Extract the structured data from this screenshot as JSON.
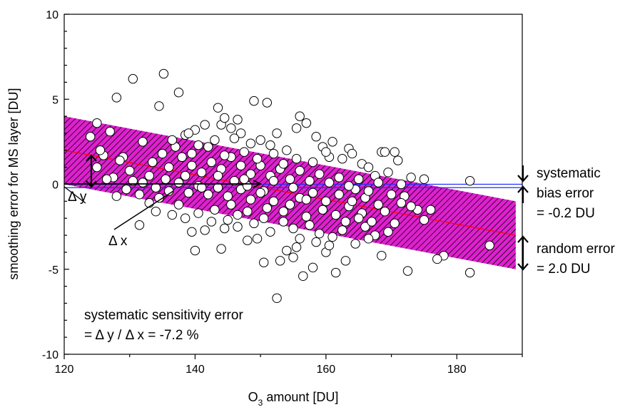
{
  "chart_data": {
    "type": "scatter",
    "title": "",
    "xlabel": "O3 amount [DU]",
    "xlabel_parts": {
      "base": "O",
      "sub": "3",
      "rest": " amount [DU]"
    },
    "ylabel": "smoothing error for MS layer [DU]",
    "xlim": [
      120,
      190
    ],
    "ylim": [
      -10,
      10
    ],
    "x_ticks": [
      "120",
      "140",
      "160",
      "180"
    ],
    "x_tick_values": [
      120,
      140,
      160,
      180
    ],
    "y_ticks": [
      "10",
      "5",
      "0",
      "-5",
      "-10"
    ],
    "y_tick_values": [
      10,
      5,
      0,
      -5,
      -10
    ],
    "grid": false,
    "colors": {
      "band_fill": "#e020d0",
      "band_hatch": "#000000",
      "regression_line": "#ff0000",
      "bias_line": "#2030ff",
      "points_edge": "#000000",
      "points_fill": "#ffffff"
    },
    "regression": {
      "x": [
        120,
        189
      ],
      "y": [
        2.0,
        -3.0
      ]
    },
    "band": {
      "upper_y": [
        4.0,
        -1.0
      ],
      "lower_y": [
        0.0,
        -5.0
      ]
    },
    "bias_line_y": [
      -0.2,
      0.0
    ],
    "zero_line_y": 0.0,
    "annotations": {
      "delta_y": "Δ y",
      "delta_x": "Δ x",
      "systematic_bias": [
        "systematic",
        "bias error",
        "= -0.2 DU"
      ],
      "random_error": [
        "random error",
        "= 2.0 DU"
      ],
      "sensitivity": [
        "systematic sensitivity error",
        "= Δ y / Δ x = -7.2 %"
      ]
    },
    "points": [
      [
        130.5,
        6.2
      ],
      [
        135.2,
        6.5
      ],
      [
        128,
        5.1
      ],
      [
        137.5,
        5.4
      ],
      [
        134.5,
        4.6
      ],
      [
        149,
        4.9
      ],
      [
        151,
        4.8
      ],
      [
        143.5,
        4.5
      ],
      [
        124,
        2.8
      ],
      [
        125,
        3.6
      ],
      [
        127,
        3.1
      ],
      [
        132,
        2.5
      ],
      [
        129,
        1.6
      ],
      [
        126,
        1.7
      ],
      [
        128.5,
        1.4
      ],
      [
        130,
        0.8
      ],
      [
        125,
        1.0
      ],
      [
        127.5,
        0.4
      ],
      [
        130.5,
        0.2
      ],
      [
        133,
        0.5
      ],
      [
        136,
        1.0
      ],
      [
        138.5,
        2.9
      ],
      [
        140,
        3.2
      ],
      [
        141.5,
        3.5
      ],
      [
        139,
        3.0
      ],
      [
        142,
        2.2
      ],
      [
        144,
        3.5
      ],
      [
        145.5,
        3.3
      ],
      [
        146.5,
        3.8
      ],
      [
        144.5,
        3.9
      ],
      [
        147,
        3.0
      ],
      [
        148.5,
        2.4
      ],
      [
        150,
        2.6
      ],
      [
        152.5,
        3.0
      ],
      [
        151.5,
        2.3
      ],
      [
        154,
        2.0
      ],
      [
        155.5,
        3.3
      ],
      [
        156,
        4.0
      ],
      [
        157,
        3.6
      ],
      [
        158.5,
        2.8
      ],
      [
        159.5,
        2.2
      ],
      [
        161,
        2.5
      ],
      [
        160.5,
        1.6
      ],
      [
        162.5,
        1.5
      ],
      [
        163.5,
        2.1
      ],
      [
        164,
        1.8
      ],
      [
        165.5,
        1.2
      ],
      [
        166.5,
        1.0
      ],
      [
        167.5,
        0.5
      ],
      [
        168.5,
        1.9
      ],
      [
        169,
        1.9
      ],
      [
        170.5,
        1.9
      ],
      [
        171,
        1.4
      ],
      [
        169.5,
        0.7
      ],
      [
        171.5,
        0.0
      ],
      [
        173,
        0.4
      ],
      [
        175,
        0.3
      ],
      [
        172,
        -0.7
      ],
      [
        174,
        -1.5
      ],
      [
        175,
        -2.1
      ],
      [
        176,
        -1.5
      ],
      [
        178,
        -4.2
      ],
      [
        177,
        -4.4
      ],
      [
        182,
        0.2
      ],
      [
        185,
        -3.6
      ],
      [
        182,
        -5.2
      ],
      [
        172.5,
        -5.1
      ],
      [
        168.5,
        -4.2
      ],
      [
        167.5,
        -3.0
      ],
      [
        166,
        -2.5
      ],
      [
        164.5,
        -3.5
      ],
      [
        163,
        -4.5
      ],
      [
        161.5,
        -5.2
      ],
      [
        160,
        -4.0
      ],
      [
        158,
        -4.9
      ],
      [
        156.5,
        -5.4
      ],
      [
        155.5,
        -3.7
      ],
      [
        154,
        -3.9
      ],
      [
        153,
        -4.5
      ],
      [
        152.5,
        -6.7
      ],
      [
        150.5,
        -4.6
      ],
      [
        149.5,
        -3.2
      ],
      [
        146.5,
        -2.5
      ],
      [
        144,
        -3.8
      ],
      [
        141.5,
        -2.7
      ],
      [
        139.5,
        -2.8
      ],
      [
        140,
        -3.9
      ],
      [
        145,
        -2.1
      ],
      [
        131.5,
        -2.4
      ],
      [
        134,
        -1.6
      ],
      [
        137.5,
        -1.2
      ],
      [
        140.5,
        -1.7
      ],
      [
        143,
        -1.5
      ],
      [
        145.5,
        -1.2
      ],
      [
        148,
        -1.6
      ],
      [
        150.5,
        -2.0
      ],
      [
        153.5,
        -2.2
      ],
      [
        155,
        -2.6
      ],
      [
        157.5,
        -2.4
      ],
      [
        159,
        -2.9
      ],
      [
        161,
        -3.1
      ],
      [
        163,
        -2.2
      ],
      [
        165.5,
        -1.7
      ],
      [
        167,
        -2.2
      ],
      [
        169.5,
        -2.8
      ],
      [
        170.5,
        -2.3
      ],
      [
        168,
        -1.2
      ],
      [
        166,
        -0.8
      ],
      [
        164.5,
        -0.3
      ],
      [
        162,
        -0.6
      ],
      [
        160,
        -1.0
      ],
      [
        158,
        -0.5
      ],
      [
        156,
        -0.8
      ],
      [
        154.5,
        -1.2
      ],
      [
        152,
        -1.0
      ],
      [
        150.5,
        -0.4
      ],
      [
        148.5,
        -0.9
      ],
      [
        147,
        -0.3
      ],
      [
        145,
        -0.7
      ],
      [
        143.5,
        -0.2
      ],
      [
        142,
        -0.6
      ],
      [
        140.5,
        -0.1
      ],
      [
        139,
        -0.5
      ],
      [
        137.5,
        0.1
      ],
      [
        136,
        -0.4
      ],
      [
        134.5,
        -0.8
      ],
      [
        133,
        -1.1
      ],
      [
        131.5,
        -0.6
      ],
      [
        129.5,
        -0.3
      ],
      [
        128,
        -0.7
      ],
      [
        126.5,
        0.3
      ],
      [
        125.5,
        2.0
      ],
      [
        133.5,
        1.3
      ],
      [
        135,
        1.8
      ],
      [
        137,
        2.2
      ],
      [
        138,
        1.6
      ],
      [
        139.5,
        1.1
      ],
      [
        141,
        0.7
      ],
      [
        142.5,
        1.3
      ],
      [
        144,
        0.9
      ],
      [
        145.5,
        1.6
      ],
      [
        147,
        1.1
      ],
      [
        148.5,
        0.6
      ],
      [
        150,
        1.1
      ],
      [
        151.5,
        0.5
      ],
      [
        153,
        0.9
      ],
      [
        154.5,
        0.3
      ],
      [
        156,
        0.8
      ],
      [
        157.5,
        0.2
      ],
      [
        159,
        0.6
      ],
      [
        160.5,
        0.1
      ],
      [
        162,
        0.4
      ],
      [
        163.5,
        -0.1
      ],
      [
        165,
        0.3
      ],
      [
        166.5,
        -0.4
      ],
      [
        168,
        0.1
      ],
      [
        170,
        -0.6
      ],
      [
        171.5,
        -1.1
      ],
      [
        173,
        -1.3
      ],
      [
        169,
        -1.6
      ],
      [
        138.5,
        0.5
      ],
      [
        141,
        -0.2
      ],
      [
        143.5,
        0.5
      ],
      [
        146,
        0.2
      ],
      [
        148,
        -0.1
      ],
      [
        150,
        -0.5
      ],
      [
        152,
        0.2
      ],
      [
        155,
        -0.2
      ],
      [
        157,
        -0.9
      ],
      [
        159.5,
        -1.5
      ],
      [
        161.5,
        -1.8
      ],
      [
        163.5,
        -1.3
      ],
      [
        165,
        -2.0
      ],
      [
        151,
        -1.4
      ],
      [
        153.5,
        -1.6
      ],
      [
        149,
        -2.3
      ],
      [
        146.5,
        -1.8
      ],
      [
        144.5,
        -2.6
      ],
      [
        142.5,
        -2.2
      ],
      [
        147.5,
        1.9
      ],
      [
        149.5,
        1.5
      ],
      [
        152,
        1.8
      ],
      [
        146,
        2.7
      ],
      [
        143,
        2.6
      ],
      [
        140.5,
        2.3
      ],
      [
        136.5,
        2.6
      ],
      [
        135.5,
        0.3
      ],
      [
        134,
        -0.2
      ],
      [
        132,
        0.1
      ],
      [
        158,
        1.3
      ],
      [
        160,
        1.9
      ],
      [
        155.5,
        1.5
      ],
      [
        153.5,
        1.2
      ],
      [
        157,
        -1.9
      ],
      [
        162.5,
        -2.7
      ],
      [
        164,
        -1.0
      ],
      [
        166.5,
        -3.2
      ],
      [
        160.5,
        -3.6
      ],
      [
        158.5,
        -3.4
      ],
      [
        156,
        -3.2
      ],
      [
        148,
        -3.3
      ],
      [
        151.5,
        -2.8
      ],
      [
        155,
        -4.3
      ],
      [
        138.5,
        -2.0
      ],
      [
        136.5,
        -1.8
      ],
      [
        144.5,
        1.7
      ],
      [
        147.5,
        0.3
      ],
      [
        139.5,
        1.8
      ]
    ]
  }
}
